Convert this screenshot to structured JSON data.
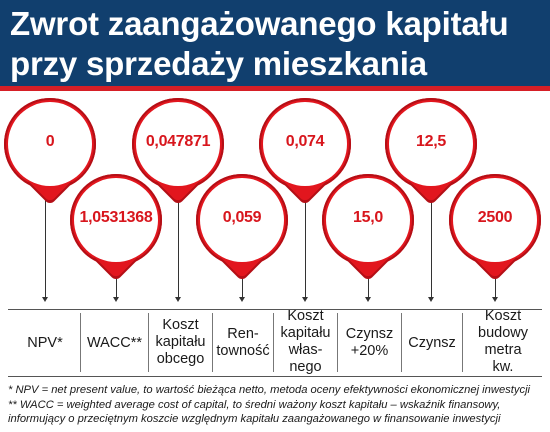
{
  "title": {
    "line1": "Zwrot zaangażowanego kapitału",
    "line2": "przy sprzedaży mieszkania"
  },
  "pins": {
    "npv": "0",
    "wacc": "1,0531368",
    "koszt_kapitalu_obcego": "0,047871",
    "rentownosc": "0,059",
    "koszt_kapitalu_wlasnego": "0,074",
    "czynsz_20": "15,0",
    "czynsz": "12,5",
    "koszt_budowy": "2500"
  },
  "labels": {
    "npv": "NPV*",
    "wacc": "WACC**",
    "koszt_kapitalu_obcego": "Koszt\nkapitału\nobcego",
    "rentownosc": "Ren-\ntowność",
    "koszt_kapitalu_wlasnego": "Koszt\nkapitału\nwłas-\nnego",
    "czynsz_20": "Czynsz\n+20%",
    "czynsz": "Czynsz",
    "koszt_budowy": "Koszt\nbudowy\nmetra\nkw."
  },
  "footnotes": {
    "line1": "* NPV = net present value, to wartość bieżąca netto, metoda oceny efektywności ekonomicznej inwestycji",
    "line2": "** WACC = weighted average cost of capital, to średni ważony koszt kapitału – wskaźnik finansowy,",
    "line3": "informujący o przeciętnym koszcie względnym kapitału zaangażowanego w finansowanie inwestycji"
  },
  "colors": {
    "header_bg": "#113f6e",
    "accent_red": "#e2161e",
    "value_red": "#d8161d"
  }
}
